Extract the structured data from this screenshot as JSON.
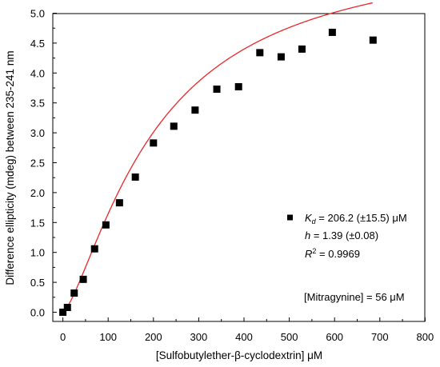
{
  "chart_data": {
    "type": "scatter",
    "title": "",
    "xlabel": "[Sulfobutylether-β-cyclodextrin] μM",
    "ylabel": "Difference ellipticity (mdeg) between 235-241 nm",
    "xlim": [
      0,
      800
    ],
    "ylim": [
      0,
      5.0
    ],
    "xticks": [
      "0",
      "100",
      "200",
      "300",
      "400",
      "500",
      "600",
      "700",
      "800"
    ],
    "yticks": [
      "0.0",
      "0.5",
      "1.0",
      "1.5",
      "2.0",
      "2.5",
      "3.0",
      "3.5",
      "4.0",
      "4.5",
      "5.0"
    ],
    "series": [
      {
        "marker": "square",
        "color": "#000000",
        "x": [
          0,
          10,
          25,
          45,
          70,
          95,
          125,
          160,
          200,
          245,
          292,
          340,
          388,
          435,
          482,
          528,
          595,
          685
        ],
        "y": [
          0.0,
          0.08,
          0.32,
          0.55,
          1.06,
          1.46,
          1.83,
          2.26,
          2.83,
          3.11,
          3.38,
          3.73,
          3.77,
          4.34,
          4.27,
          4.4,
          4.68,
          4.55
        ]
      }
    ],
    "fit": {
      "color": "#e8272a",
      "model": "hill",
      "Bmax": 6.15,
      "Kd": 206.2,
      "h": 1.39,
      "x_range": [
        0,
        685
      ]
    },
    "legend": {
      "placement": "right",
      "kd_symbol": "K",
      "kd_sub": "d",
      "kd_text": " = 206.2 (±15.5) μM",
      "h_symbol": "h",
      "h_text": " = 1.39 (±0.08)",
      "r_symbol": "R",
      "r_sup": "2",
      "r_text": " = 0.9969"
    },
    "annotation": "[Mitragynine] = 56 μM"
  }
}
